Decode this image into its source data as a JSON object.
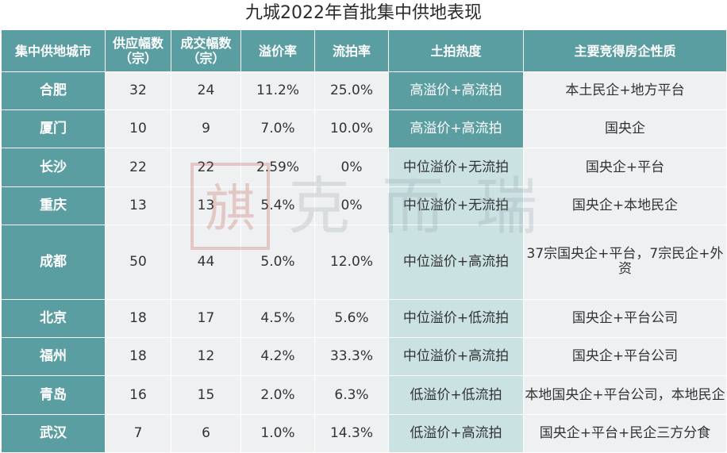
{
  "title": "九城2022年首批集中供地表现",
  "headers": [
    "集中供地城市",
    "供应幅数（宗）",
    "成交幅数（宗）",
    "溢价率",
    "流拍率",
    "土拍热度",
    "主要竞得房企性质"
  ],
  "rows": [
    {
      "city": "合肥",
      "supply": "32",
      "deal": "24",
      "premium": "11.2%",
      "unsold": "25.0%",
      "heat": "高溢价+高流拍",
      "heat_level": "high",
      "nature": "本土民企+地方平台"
    },
    {
      "city": "厦门",
      "supply": "10",
      "deal": "9",
      "premium": "7.0%",
      "unsold": "10.0%",
      "heat": "高溢价+高流拍",
      "heat_level": "high",
      "nature": "国央企"
    },
    {
      "city": "长沙",
      "supply": "22",
      "deal": "22",
      "premium": "2.59%",
      "unsold": "0%",
      "heat": "中位溢价+无流拍",
      "heat_level": "mid",
      "nature": "国央企+平台"
    },
    {
      "city": "重庆",
      "supply": "13",
      "deal": "13",
      "premium": "5.4%",
      "unsold": "0%",
      "heat": "中位溢价+无流拍",
      "heat_level": "mid",
      "nature": "国央企+本地民企"
    },
    {
      "city": "成都",
      "supply": "50",
      "deal": "44",
      "premium": "5.0%",
      "unsold": "12.0%",
      "heat": "中位溢价+高流拍",
      "heat_level": "mid",
      "nature": "37宗国央企+平台，7宗民企+外资"
    },
    {
      "city": "北京",
      "supply": "18",
      "deal": "17",
      "premium": "4.5%",
      "unsold": "5.6%",
      "heat": "中位溢价+低流拍",
      "heat_level": "mid",
      "nature": "国央企+平台公司"
    },
    {
      "city": "福州",
      "supply": "18",
      "deal": "12",
      "premium": "4.2%",
      "unsold": "33.3%",
      "heat": "中位溢价+高流拍",
      "heat_level": "mid",
      "nature": "国央企+平台公司"
    },
    {
      "city": "青岛",
      "supply": "16",
      "deal": "15",
      "premium": "2.0%",
      "unsold": "6.3%",
      "heat": "低溢价+低流拍",
      "heat_level": "mid",
      "nature": "本地国央企+平台公司，本地民企"
    },
    {
      "city": "武汉",
      "supply": "7",
      "deal": "6",
      "premium": "1.0%",
      "unsold": "14.3%",
      "heat": "低溢价+高流拍",
      "heat_level": "mid",
      "nature": "国央企+平台+民企三方分食"
    }
  ],
  "watermark": {
    "text": "克而瑞"
  }
}
